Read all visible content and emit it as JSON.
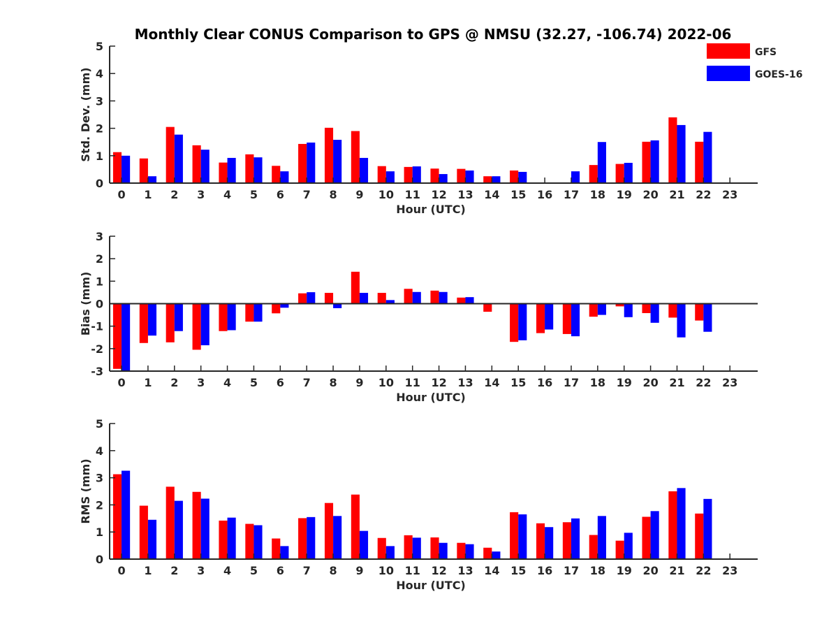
{
  "title": "Monthly Clear CONUS Comparison to GPS @ NMSU (32.27, -106.74) 2022-06",
  "legend": [
    {
      "label": "GFS",
      "color": "#ff0000"
    },
    {
      "label": "GOES-16",
      "color": "#0000ff"
    }
  ],
  "chart_data": [
    {
      "type": "bar",
      "title": "",
      "xlabel": "Hour (UTC)",
      "ylabel": "Std. Dev. (mm)",
      "ylim": [
        0,
        5
      ],
      "yticks": [
        0,
        1,
        2,
        3,
        4,
        5
      ],
      "categories": [
        "0",
        "1",
        "2",
        "3",
        "4",
        "5",
        "6",
        "7",
        "8",
        "9",
        "10",
        "11",
        "12",
        "13",
        "14",
        "15",
        "16",
        "17",
        "18",
        "19",
        "20",
        "21",
        "22",
        "23"
      ],
      "series": [
        {
          "name": "GFS",
          "color": "#ff0000",
          "values": [
            1.13,
            0.9,
            2.05,
            1.38,
            0.75,
            1.05,
            0.63,
            1.43,
            2.02,
            1.9,
            0.62,
            0.59,
            0.53,
            0.52,
            0.25,
            0.46,
            null,
            null,
            0.66,
            0.7,
            1.51,
            2.4,
            1.51,
            null
          ]
        },
        {
          "name": "GOES-16",
          "color": "#0000ff",
          "values": [
            1.0,
            0.25,
            1.77,
            1.22,
            0.92,
            0.94,
            0.43,
            1.48,
            1.58,
            0.92,
            0.43,
            0.61,
            0.33,
            0.46,
            0.25,
            0.41,
            null,
            0.43,
            1.5,
            0.74,
            1.56,
            2.12,
            1.87,
            null
          ]
        }
      ]
    },
    {
      "type": "bar",
      "title": "",
      "xlabel": "Hour (UTC)",
      "ylabel": "Bias (mm)",
      "ylim": [
        -3,
        3
      ],
      "yticks": [
        -3,
        -2,
        -1,
        0,
        1,
        2,
        3
      ],
      "categories": [
        "0",
        "1",
        "2",
        "3",
        "4",
        "5",
        "6",
        "7",
        "8",
        "9",
        "10",
        "11",
        "12",
        "13",
        "14",
        "15",
        "16",
        "17",
        "18",
        "19",
        "20",
        "21",
        "22",
        "23"
      ],
      "series": [
        {
          "name": "GFS",
          "color": "#ff0000",
          "values": [
            -2.9,
            -1.75,
            -1.72,
            -2.05,
            -1.22,
            -0.8,
            -0.43,
            0.46,
            0.48,
            1.42,
            0.48,
            0.66,
            0.58,
            0.27,
            -0.36,
            -1.7,
            -1.31,
            -1.35,
            -0.58,
            -0.12,
            -0.42,
            -0.62,
            -0.75,
            null
          ]
        },
        {
          "name": "GOES-16",
          "color": "#0000ff",
          "values": [
            -3.0,
            -1.42,
            -1.22,
            -1.85,
            -1.18,
            -0.8,
            -0.18,
            0.51,
            -0.2,
            0.48,
            0.16,
            0.52,
            0.52,
            0.29,
            null,
            -1.63,
            -1.15,
            -1.45,
            -0.5,
            -0.6,
            -0.85,
            -1.5,
            -1.25,
            null
          ]
        }
      ]
    },
    {
      "type": "bar",
      "title": "",
      "xlabel": "Hour (UTC)",
      "ylabel": "RMS (mm)",
      "ylim": [
        0,
        5
      ],
      "yticks": [
        0,
        1,
        2,
        3,
        4,
        5
      ],
      "categories": [
        "0",
        "1",
        "2",
        "3",
        "4",
        "5",
        "6",
        "7",
        "8",
        "9",
        "10",
        "11",
        "12",
        "13",
        "14",
        "15",
        "16",
        "17",
        "18",
        "19",
        "20",
        "21",
        "22",
        "23"
      ],
      "series": [
        {
          "name": "GFS",
          "color": "#ff0000",
          "values": [
            3.13,
            1.97,
            2.67,
            2.48,
            1.42,
            1.3,
            0.76,
            1.51,
            2.07,
            2.38,
            0.78,
            0.88,
            0.8,
            0.6,
            0.42,
            1.73,
            1.32,
            1.36,
            0.89,
            0.68,
            1.56,
            2.5,
            1.68,
            null
          ]
        },
        {
          "name": "GOES-16",
          "color": "#0000ff",
          "values": [
            3.26,
            1.45,
            2.15,
            2.23,
            1.53,
            1.25,
            0.48,
            1.55,
            1.59,
            1.04,
            0.48,
            0.79,
            0.6,
            0.55,
            0.28,
            1.65,
            1.18,
            1.5,
            1.59,
            0.97,
            1.77,
            2.62,
            2.22,
            null
          ]
        }
      ]
    }
  ]
}
